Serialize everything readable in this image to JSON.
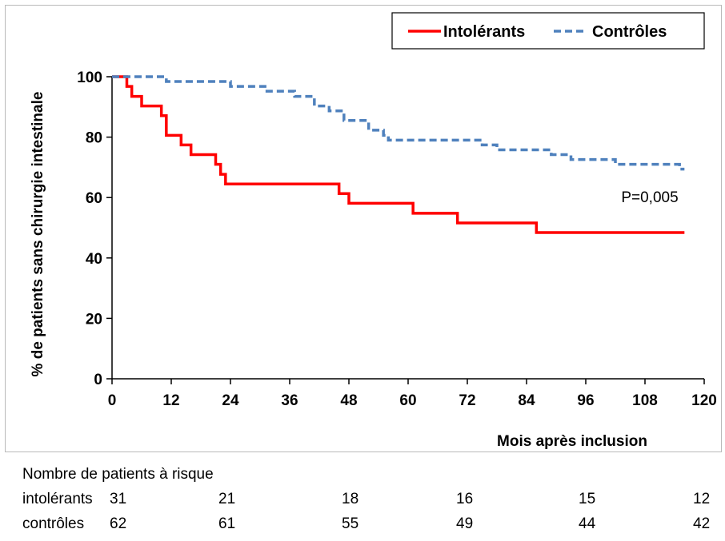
{
  "chart_data": {
    "type": "line",
    "title": "",
    "xlabel": "Mois après inclusion",
    "ylabel": "% de patients sans chirurgie intestinale",
    "xlim": [
      0,
      120
    ],
    "ylim": [
      0,
      100
    ],
    "xticks": [
      0,
      12,
      24,
      36,
      48,
      60,
      72,
      84,
      96,
      108,
      120
    ],
    "yticks": [
      0,
      20,
      40,
      60,
      80,
      100
    ],
    "grid": false,
    "legend_position": "top-right",
    "annotation": "P=0,005",
    "series": [
      {
        "name": "Intolérants",
        "color": "#ff0000",
        "style": "solid",
        "step": true,
        "x": [
          0,
          3,
          4,
          6,
          10,
          11,
          14,
          16,
          21,
          22,
          23,
          46,
          48,
          61,
          70,
          86,
          116
        ],
        "y": [
          100,
          96.8,
          93.5,
          90.3,
          87.1,
          80.6,
          77.4,
          74.2,
          71,
          67.7,
          64.5,
          61.3,
          58.1,
          54.8,
          51.6,
          48.4,
          48.4
        ]
      },
      {
        "name": "Contrôles",
        "color": "#4f81bd",
        "style": "dashed",
        "step": true,
        "x": [
          0,
          11,
          24,
          31,
          37,
          41,
          44,
          47,
          52,
          55,
          56,
          75,
          78,
          89,
          93,
          102,
          115,
          116
        ],
        "y": [
          100,
          98.4,
          96.8,
          95.2,
          93.5,
          90.3,
          88.7,
          85.5,
          82.3,
          80.6,
          79,
          77.4,
          75.8,
          74.2,
          72.6,
          71,
          69.4,
          69.4
        ]
      }
    ]
  },
  "risk_table": {
    "header": "Nombre de patients à risque",
    "rows": [
      {
        "label": "intolérants",
        "values": [
          "31",
          "21",
          "18",
          "16",
          "15",
          "12"
        ]
      },
      {
        "label": "contrôles",
        "values": [
          "62",
          "61",
          "55",
          "49",
          "44",
          "42"
        ]
      }
    ]
  }
}
